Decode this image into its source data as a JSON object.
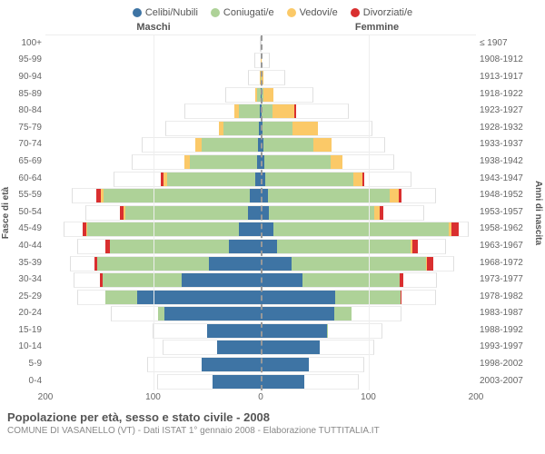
{
  "chart": {
    "type": "population-pyramid",
    "max_value": 200,
    "x_ticks": [
      200,
      100,
      0,
      100,
      200
    ],
    "header_males": "Maschi",
    "header_females": "Femmine",
    "y_label_left": "Fasce di età",
    "y_label_right": "Anni di nascita",
    "colors": {
      "celibi": "#3e74a4",
      "coniugati": "#aed298",
      "vedovi": "#fbc968",
      "divorziati": "#d92f2f",
      "grid": "#eeeeee",
      "midline": "#999999",
      "bg": "#ffffff"
    },
    "legend": [
      {
        "label": "Celibi/Nubili",
        "color": "#3e74a4"
      },
      {
        "label": "Coniugati/e",
        "color": "#aed298"
      },
      {
        "label": "Vedovi/e",
        "color": "#fbc968"
      },
      {
        "label": "Divorziati/e",
        "color": "#d92f2f"
      }
    ],
    "rows": [
      {
        "age": "100+",
        "birth": "≤ 1907",
        "m": {
          "c": 0,
          "co": 0,
          "v": 0,
          "d": 0
        },
        "f": {
          "c": 0,
          "co": 0,
          "v": 0,
          "d": 0
        }
      },
      {
        "age": "95-99",
        "birth": "1908-1912",
        "m": {
          "c": 0,
          "co": 2,
          "v": 3,
          "d": 0
        },
        "f": {
          "c": 0,
          "co": 1,
          "v": 7,
          "d": 0
        }
      },
      {
        "age": "90-94",
        "birth": "1913-1917",
        "m": {
          "c": 1,
          "co": 5,
          "v": 5,
          "d": 0
        },
        "f": {
          "c": 1,
          "co": 3,
          "v": 18,
          "d": 0
        }
      },
      {
        "age": "85-89",
        "birth": "1918-1922",
        "m": {
          "c": 2,
          "co": 20,
          "v": 10,
          "d": 0
        },
        "f": {
          "c": 2,
          "co": 8,
          "v": 38,
          "d": 0
        }
      },
      {
        "age": "80-84",
        "birth": "1923-1927",
        "m": {
          "c": 3,
          "co": 55,
          "v": 12,
          "d": 0
        },
        "f": {
          "c": 3,
          "co": 25,
          "v": 50,
          "d": 3
        }
      },
      {
        "age": "75-79",
        "birth": "1928-1932",
        "m": {
          "c": 3,
          "co": 75,
          "v": 10,
          "d": 0
        },
        "f": {
          "c": 3,
          "co": 55,
          "v": 45,
          "d": 0
        }
      },
      {
        "age": "70-74",
        "birth": "1933-1937",
        "m": {
          "c": 5,
          "co": 95,
          "v": 10,
          "d": 0
        },
        "f": {
          "c": 5,
          "co": 80,
          "v": 30,
          "d": 0
        }
      },
      {
        "age": "65-69",
        "birth": "1938-1942",
        "m": {
          "c": 6,
          "co": 105,
          "v": 8,
          "d": 0
        },
        "f": {
          "c": 5,
          "co": 100,
          "v": 18,
          "d": 0
        }
      },
      {
        "age": "60-64",
        "birth": "1943-1947",
        "m": {
          "c": 8,
          "co": 120,
          "v": 5,
          "d": 3
        },
        "f": {
          "c": 6,
          "co": 118,
          "v": 12,
          "d": 3
        }
      },
      {
        "age": "55-59",
        "birth": "1948-1952",
        "m": {
          "c": 12,
          "co": 155,
          "v": 3,
          "d": 5
        },
        "f": {
          "c": 8,
          "co": 140,
          "v": 10,
          "d": 4
        }
      },
      {
        "age": "50-54",
        "birth": "1953-1957",
        "m": {
          "c": 15,
          "co": 140,
          "v": 2,
          "d": 5
        },
        "f": {
          "c": 10,
          "co": 130,
          "v": 6,
          "d": 5
        }
      },
      {
        "age": "45-49",
        "birth": "1958-1962",
        "m": {
          "c": 22,
          "co": 155,
          "v": 1,
          "d": 4
        },
        "f": {
          "c": 12,
          "co": 170,
          "v": 3,
          "d": 7
        }
      },
      {
        "age": "40-44",
        "birth": "1963-1967",
        "m": {
          "c": 35,
          "co": 130,
          "v": 0,
          "d": 5
        },
        "f": {
          "c": 18,
          "co": 145,
          "v": 2,
          "d": 6
        }
      },
      {
        "age": "35-39",
        "birth": "1968-1972",
        "m": {
          "c": 55,
          "co": 118,
          "v": 0,
          "d": 3
        },
        "f": {
          "c": 32,
          "co": 140,
          "v": 1,
          "d": 6
        }
      },
      {
        "age": "30-34",
        "birth": "1973-1977",
        "m": {
          "c": 85,
          "co": 85,
          "v": 0,
          "d": 3
        },
        "f": {
          "c": 48,
          "co": 110,
          "v": 0,
          "d": 5
        }
      },
      {
        "age": "25-29",
        "birth": "1978-1982",
        "m": {
          "c": 135,
          "co": 35,
          "v": 0,
          "d": 0
        },
        "f": {
          "c": 85,
          "co": 75,
          "v": 0,
          "d": 2
        }
      },
      {
        "age": "20-24",
        "birth": "1983-1987",
        "m": {
          "c": 130,
          "co": 8,
          "v": 0,
          "d": 0
        },
        "f": {
          "c": 105,
          "co": 25,
          "v": 0,
          "d": 0
        }
      },
      {
        "age": "15-19",
        "birth": "1988-1992",
        "m": {
          "c": 100,
          "co": 0,
          "v": 0,
          "d": 0
        },
        "f": {
          "c": 110,
          "co": 2,
          "v": 0,
          "d": 0
        }
      },
      {
        "age": "10-14",
        "birth": "1993-1997",
        "m": {
          "c": 90,
          "co": 0,
          "v": 0,
          "d": 0
        },
        "f": {
          "c": 105,
          "co": 0,
          "v": 0,
          "d": 0
        }
      },
      {
        "age": "5-9",
        "birth": "1998-2002",
        "m": {
          "c": 105,
          "co": 0,
          "v": 0,
          "d": 0
        },
        "f": {
          "c": 95,
          "co": 0,
          "v": 0,
          "d": 0
        }
      },
      {
        "age": "0-4",
        "birth": "2003-2007",
        "m": {
          "c": 95,
          "co": 0,
          "v": 0,
          "d": 0
        },
        "f": {
          "c": 90,
          "co": 0,
          "v": 0,
          "d": 0
        }
      }
    ]
  },
  "footer": {
    "title": "Popolazione per età, sesso e stato civile - 2008",
    "subtitle": "COMUNE DI VASANELLO (VT) - Dati ISTAT 1° gennaio 2008 - Elaborazione TUTTITALIA.IT"
  }
}
